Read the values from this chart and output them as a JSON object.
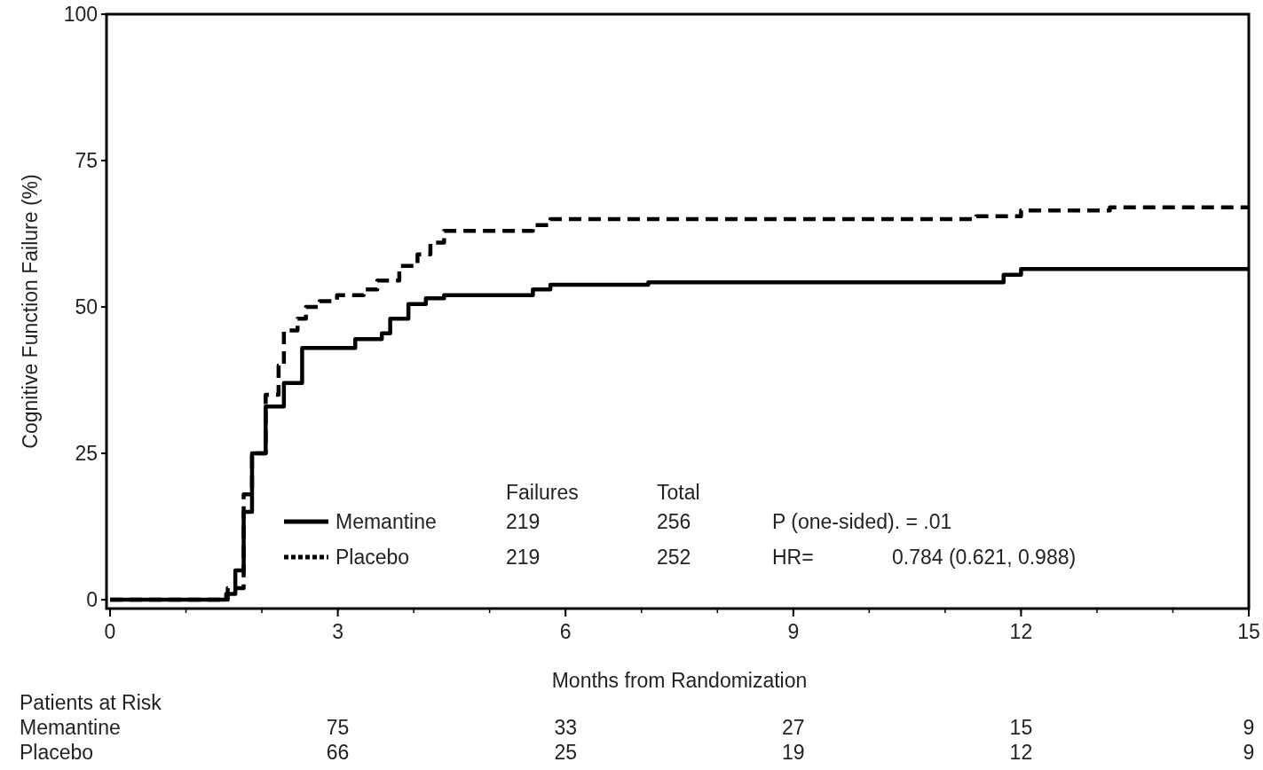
{
  "chart_data": {
    "type": "step",
    "xlabel": "Months from Randomization",
    "ylabel": "Cognitive Function Failure (%)",
    "xlim": [
      0,
      15
    ],
    "ylim": [
      -1.5,
      100
    ],
    "xticks": [
      0,
      3,
      6,
      9,
      12,
      15
    ],
    "yticks": [
      0,
      25,
      50,
      75,
      100
    ],
    "legend": "bottom",
    "series": [
      {
        "name": "Memantine",
        "color": "#000000",
        "line_style": "solid",
        "x": [
          0,
          1.36,
          1.53,
          1.65,
          1.76,
          1.87,
          2.05,
          2.29,
          2.53,
          2.99,
          3.23,
          3.58,
          3.69,
          3.93,
          4.16,
          4.4,
          4.98,
          5.57,
          5.8,
          7.09,
          11.53,
          11.77,
          12.0,
          15
        ],
        "values": [
          0,
          0,
          1,
          5,
          15,
          25,
          33,
          37,
          43,
          43,
          44.5,
          45.5,
          48,
          50.5,
          51.5,
          52,
          52,
          53,
          53.8,
          54.2,
          54.2,
          55.5,
          56.5,
          56.5
        ]
      },
      {
        "name": "Placebo",
        "color": "#000000",
        "line_style": "dashed",
        "x": [
          0,
          1.4,
          1.55,
          1.76,
          1.87,
          2.05,
          2.22,
          2.29,
          2.47,
          2.58,
          2.76,
          2.99,
          3.34,
          3.52,
          3.81,
          4.05,
          4.22,
          4.4,
          5.22,
          5.57,
          5.8,
          11.06,
          11.41,
          12.0,
          13.17,
          15
        ],
        "values": [
          0,
          0,
          2,
          18,
          25,
          35,
          40,
          46,
          48,
          50,
          51,
          52,
          53,
          54.5,
          57,
          59,
          61,
          63,
          63,
          64,
          65,
          65,
          65.5,
          66.5,
          67,
          67
        ]
      }
    ],
    "annotations": [
      "Failures",
      "Total",
      "219",
      "256",
      "P (one-sided). = .01",
      "219",
      "252",
      "HR=",
      "0.784 (0.621, 0.988)",
      "Patients at Risk",
      "Memantine",
      "75",
      "33",
      "27",
      "15",
      "9",
      "Placebo",
      "66",
      "25",
      "19",
      "12",
      "9"
    ]
  }
}
